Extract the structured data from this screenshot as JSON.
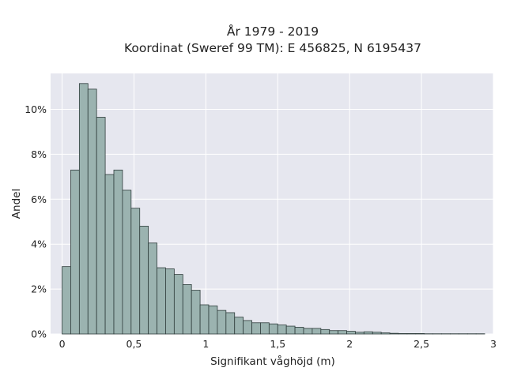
{
  "chart_data": {
    "type": "bar",
    "title": "År 1979 - 2019",
    "subtitle": "Koordinat (Sweref 99 TM): E 456825, N 6195437",
    "xlabel": "Signifikant våghöjd (m)",
    "ylabel": "Andel",
    "xlim": [
      -0.08,
      3.0
    ],
    "ylim": [
      0,
      11.6
    ],
    "x_ticks": [
      0,
      0.5,
      1,
      1.5,
      2,
      2.5,
      3
    ],
    "x_tick_labels": [
      "0",
      "0,5",
      "1",
      "1,5",
      "2",
      "2,5",
      "3"
    ],
    "y_ticks": [
      0,
      2,
      4,
      6,
      8,
      10
    ],
    "y_tick_labels": [
      "0%",
      "2%",
      "4%",
      "6%",
      "8%",
      "10%"
    ],
    "bin_width": 0.06,
    "bin_start": 0.0,
    "values_percent": [
      3.0,
      7.3,
      11.15,
      10.9,
      9.65,
      7.1,
      7.3,
      6.4,
      5.6,
      4.8,
      4.05,
      2.95,
      2.9,
      2.65,
      2.2,
      1.95,
      1.3,
      1.25,
      1.05,
      0.95,
      0.75,
      0.6,
      0.5,
      0.5,
      0.45,
      0.4,
      0.35,
      0.3,
      0.25,
      0.25,
      0.2,
      0.15,
      0.15,
      0.12,
      0.08,
      0.1,
      0.08,
      0.05,
      0.03,
      0.02,
      0.02,
      0.02,
      0.01,
      0.01,
      0.01,
      0.01,
      0.01,
      0.01,
      0.01
    ],
    "grid": true,
    "colors": {
      "bar_fill": "#9bb3b0",
      "bar_edge": "#2f3d3c",
      "plot_background": "#e6e7ef",
      "grid": "#ffffff"
    }
  }
}
